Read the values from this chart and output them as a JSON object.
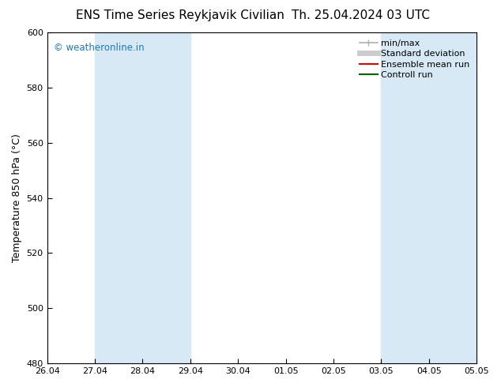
{
  "title_left": "ENS Time Series Reykjavik Civilian",
  "title_right": "Th. 25.04.2024 03 UTC",
  "ylabel": "Temperature 850 hPa (°C)",
  "watermark": "© weatheronline.in",
  "xlim": [
    0,
    9
  ],
  "ylim": [
    480,
    600
  ],
  "yticks": [
    480,
    500,
    520,
    540,
    560,
    580,
    600
  ],
  "xtick_labels": [
    "26.04",
    "27.04",
    "28.04",
    "29.04",
    "30.04",
    "01.05",
    "02.05",
    "03.05",
    "04.05",
    "05.05"
  ],
  "background_color": "#ffffff",
  "plot_bg_color": "#ffffff",
  "shaded_bands": [
    {
      "x_start": 1,
      "x_end": 3,
      "color": "#d6e9f5"
    },
    {
      "x_start": 7,
      "x_end": 9,
      "color": "#d6e9f5"
    }
  ],
  "legend_items": [
    {
      "label": "min/max",
      "color": "#b0b0b0",
      "lw": 1.2,
      "style": "line_with_caps"
    },
    {
      "label": "Standard deviation",
      "color": "#cccccc",
      "lw": 5,
      "style": "thick"
    },
    {
      "label": "Ensemble mean run",
      "color": "#dd0000",
      "lw": 1.5,
      "style": "line"
    },
    {
      "label": "Controll run",
      "color": "#006600",
      "lw": 1.5,
      "style": "line"
    }
  ],
  "watermark_color": "#1a7abf",
  "title_fontsize": 11,
  "ylabel_fontsize": 9,
  "tick_fontsize": 8,
  "legend_fontsize": 8
}
